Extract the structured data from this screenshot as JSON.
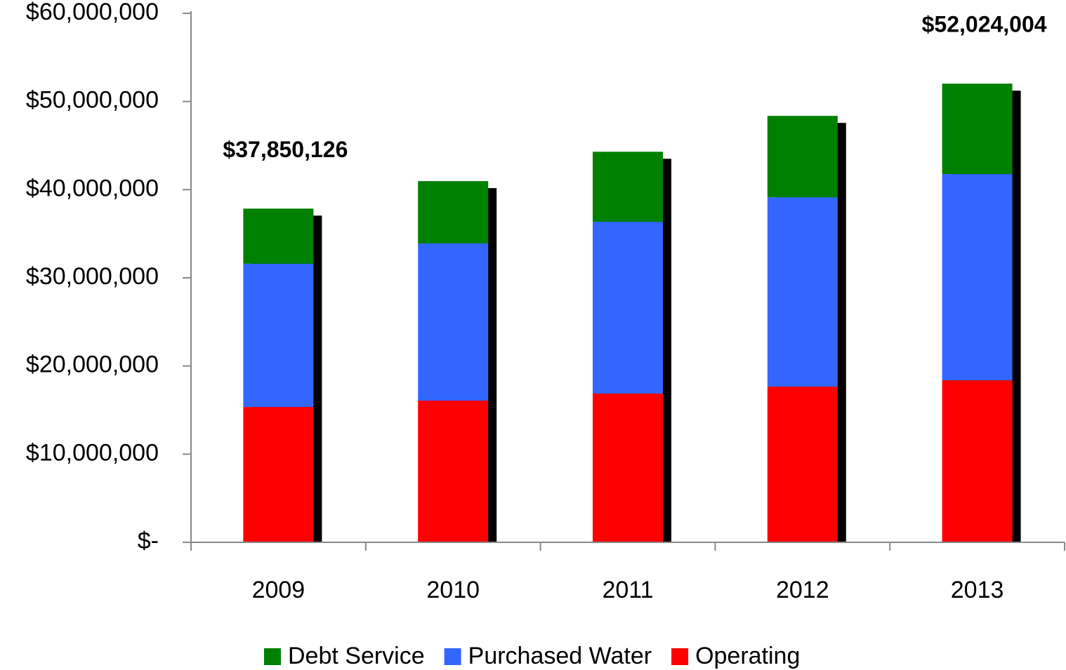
{
  "chart_data": {
    "type": "stacked_bar",
    "categories": [
      "2009",
      "2010",
      "2011",
      "2012",
      "2013"
    ],
    "series": [
      {
        "name": "Operating",
        "color": "#ff0000",
        "values": [
          15350000,
          16070000,
          16870000,
          17660000,
          18380000
        ]
      },
      {
        "name": "Purchased Water",
        "color": "#3366ff",
        "values": [
          16250000,
          17830000,
          19490000,
          21480000,
          23390000
        ]
      },
      {
        "name": "Debt Service",
        "color": "#008000",
        "values": [
          6250126,
          7070000,
          7940000,
          9230000,
          10254004
        ]
      }
    ],
    "legend_order": [
      "Debt Service",
      "Purchased Water",
      "Operating"
    ],
    "annotations": [
      {
        "x": "2009",
        "text": "$37,850,126"
      },
      {
        "x": "2013",
        "text": "$52,024,004"
      }
    ],
    "ylim": [
      0,
      60000000
    ],
    "yticks": [
      {
        "value": 0,
        "label": "$-"
      },
      {
        "value": 10000000,
        "label": "$10,000,000"
      },
      {
        "value": 20000000,
        "label": "$20,000,000"
      },
      {
        "value": 30000000,
        "label": "$30,000,000"
      },
      {
        "value": 40000000,
        "label": "$40,000,000"
      },
      {
        "value": 50000000,
        "label": "$50,000,000"
      },
      {
        "value": 60000000,
        "label": "$60,000,000"
      }
    ],
    "legend": "bottom"
  }
}
